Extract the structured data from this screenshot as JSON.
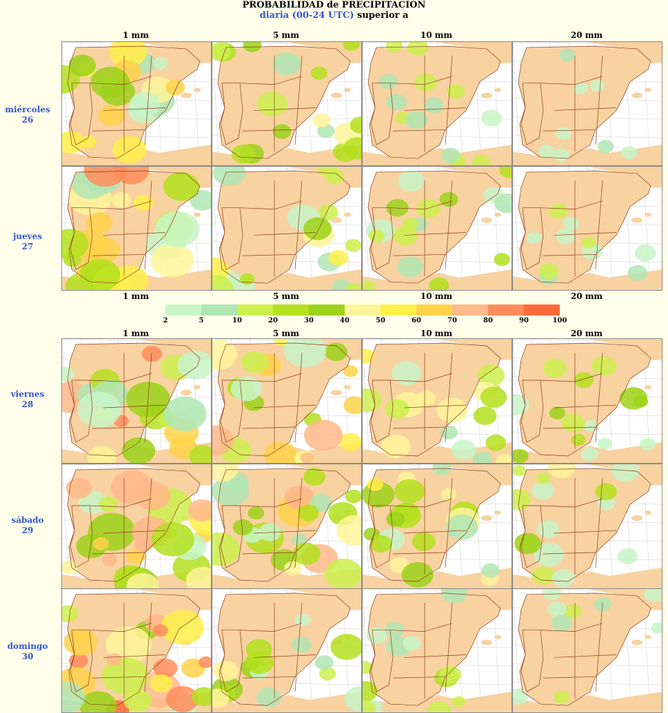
{
  "header": {
    "title": "PROBABILIDAD de PRECIPITACIÓN",
    "subtitle_blue": "diaria (00-24 UTC)",
    "subtitle_rest": " superior a"
  },
  "thresholds": [
    "1 mm",
    "5 mm",
    "10 mm",
    "20 mm"
  ],
  "days": [
    {
      "name": "miércoles",
      "num": "26"
    },
    {
      "name": "jueves",
      "num": "27"
    },
    {
      "name": "viernes",
      "num": "28"
    },
    {
      "name": "sábado",
      "num": "29"
    },
    {
      "name": "domingo",
      "num": "30"
    }
  ],
  "legend": {
    "labels": [
      "2",
      "5",
      "10",
      "20",
      "30",
      "40",
      "50",
      "60",
      "70",
      "80",
      "90",
      "100"
    ],
    "colors": [
      "#c8f5c8",
      "#b0e6b4",
      "#ccf04e",
      "#b4e01e",
      "#9cd21a",
      "#fff59a",
      "#fff04a",
      "#ffd24a",
      "#ffb98a",
      "#ff8c5a",
      "#ff6a3a"
    ]
  },
  "map_colors": {
    "land": "#f8d2a0",
    "sea": "#ffffff",
    "border": "#8b3a1a",
    "grid": "#cccccc"
  }
}
